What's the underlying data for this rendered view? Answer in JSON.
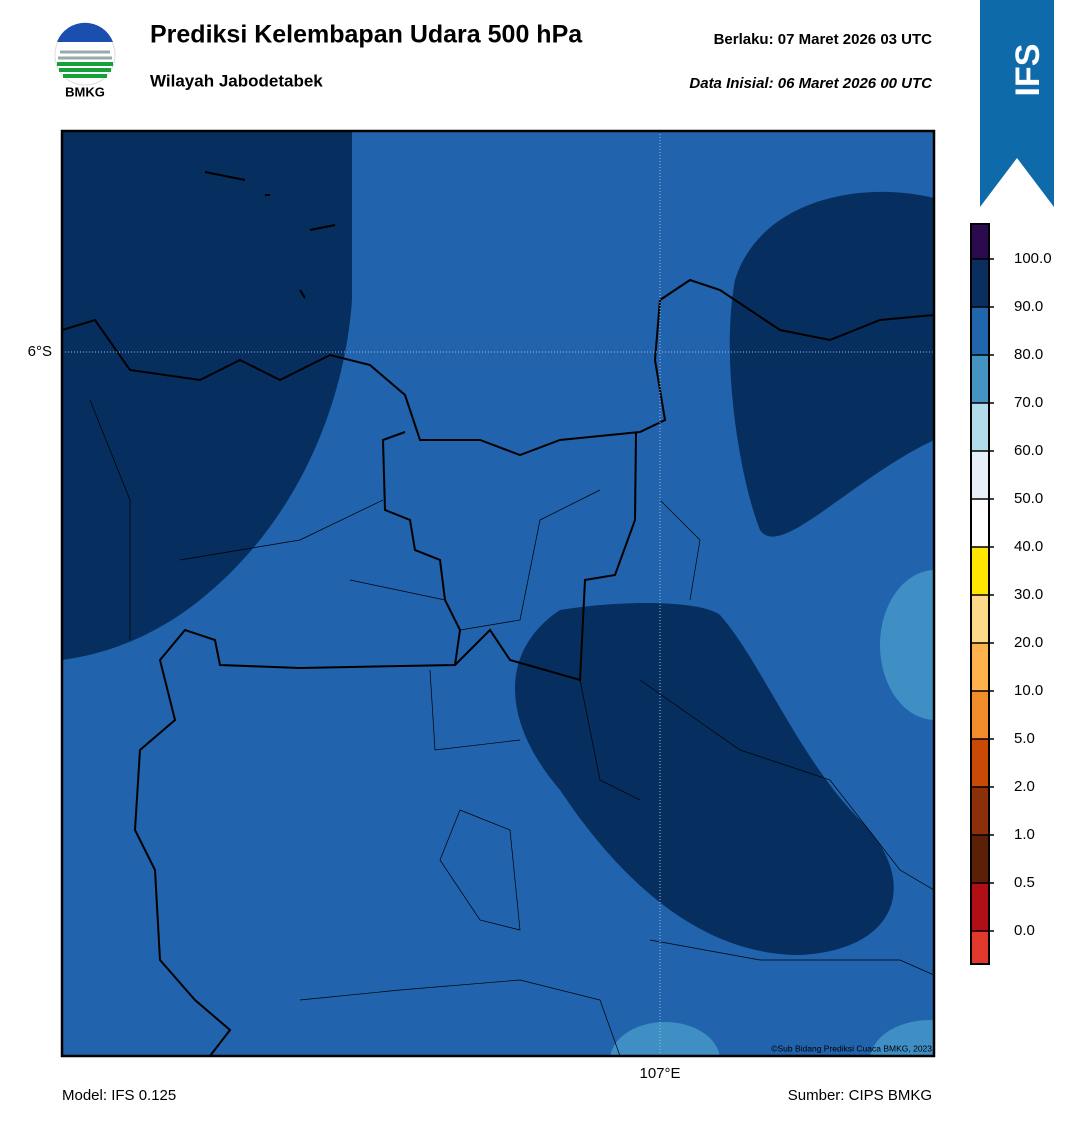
{
  "header": {
    "logo_text": "BMKG",
    "title": "Prediksi Kelembapan Udara 500 hPa",
    "subtitle": "Wilayah Jabodetabek",
    "valid": "Berlaku:  07 Maret 2026 03 UTC",
    "initial": "Data Inisial:  06 Maret 2026 00 UTC",
    "badge": "IFS"
  },
  "map": {
    "lat_label": "6°S",
    "lon_label": "107°E",
    "copyright": "©Sub Bidang Prediksi Cuaca BMKG, 2023"
  },
  "colorbar": {
    "labels": [
      "0.0",
      "0.5",
      "1.0",
      "2.0",
      "5.0",
      "10.0",
      "20.0",
      "30.0",
      "40.0",
      "50.0",
      "60.0",
      "70.0",
      "80.0",
      "90.0",
      "100.0"
    ],
    "colors": [
      "#e0392b",
      "#b01015",
      "#5c2008",
      "#8b3008",
      "#c84a05",
      "#f08c2a",
      "#fdb24c",
      "#fdd98a",
      "#ffe600",
      "#ffffff",
      "#e7f0f8",
      "#b2dce9",
      "#4393c3",
      "#2166ac",
      "#0a2f5f",
      "#2b0a4d"
    ]
  },
  "footer": {
    "model": "Model: IFS 0.125",
    "source": "Sumber: CIPS BMKG"
  }
}
